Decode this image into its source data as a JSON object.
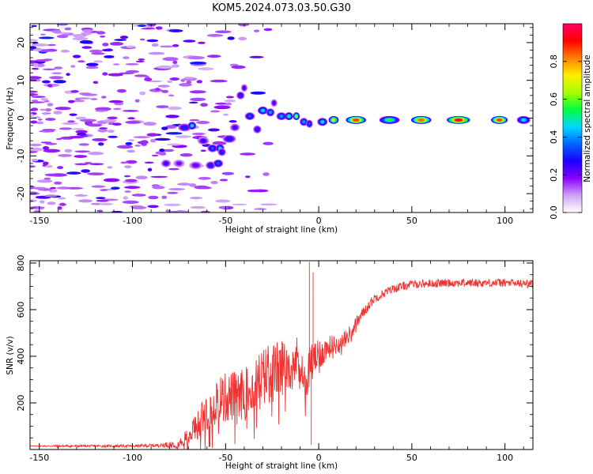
{
  "figure": {
    "title": "KOM5.2024.073.03.50.G30"
  },
  "chart_data": [
    {
      "type": "heatmap",
      "xlabel": "Height of straight line (km)",
      "ylabel": "Frequency (Hz)",
      "xlim": [
        -155,
        115
      ],
      "ylim": [
        -25,
        25
      ],
      "x_ticks": [
        -150,
        -100,
        -50,
        0,
        50,
        100
      ],
      "y_ticks": [
        -20,
        -10,
        0,
        10,
        20
      ],
      "colorbar": {
        "label": "Normalized spectral amplitude",
        "range": [
          0,
          1
        ],
        "ticks": [
          "0.0",
          "0.2",
          "0.4",
          "0.6",
          "0.8"
        ],
        "tick_values": [
          0,
          0.2,
          0.4,
          0.6,
          0.8
        ],
        "colors": [
          "#ffffff",
          "#cfa3f5",
          "#8a00ff",
          "#1a00ff",
          "#0066ff",
          "#00d8ff",
          "#00ff3c",
          "#a8ff00",
          "#ffee00",
          "#ff8000",
          "#ff0000",
          "#ff0066"
        ]
      },
      "trace": [
        {
          "x": -82,
          "y": -12,
          "w": 6,
          "amp": 0.25
        },
        {
          "x": -75,
          "y": -12,
          "w": 7,
          "amp": 0.2
        },
        {
          "x": -66,
          "y": -12.5,
          "w": 8,
          "amp": 0.22
        },
        {
          "x": -58,
          "y": -12.5,
          "w": 6,
          "amp": 0.3
        },
        {
          "x": -54,
          "y": -12,
          "w": 6,
          "amp": 0.35
        },
        {
          "x": -72,
          "y": -2.5,
          "w": 8,
          "amp": 0.3
        },
        {
          "x": -68,
          "y": -2,
          "w": 5,
          "amp": 0.45
        },
        {
          "x": -62,
          "y": -6,
          "w": 7,
          "amp": 0.25
        },
        {
          "x": -57,
          "y": -8,
          "w": 6,
          "amp": 0.35
        },
        {
          "x": -53,
          "y": -8,
          "w": 5,
          "amp": 0.45
        },
        {
          "x": -48,
          "y": -5.5,
          "w": 8,
          "amp": 0.3
        },
        {
          "x": -52,
          "y": -9,
          "w": 5,
          "amp": 0.3
        },
        {
          "x": -45,
          "y": -2.5,
          "w": 6,
          "amp": 0.25
        },
        {
          "x": -42,
          "y": 6,
          "w": 5,
          "amp": 0.3
        },
        {
          "x": -40,
          "y": 8,
          "w": 4,
          "amp": 0.25
        },
        {
          "x": -37,
          "y": 0.5,
          "w": 6,
          "amp": 0.35
        },
        {
          "x": -33,
          "y": -3,
          "w": 5,
          "amp": 0.3
        },
        {
          "x": -30,
          "y": 2,
          "w": 6,
          "amp": 0.45
        },
        {
          "x": -26,
          "y": 1.5,
          "w": 5,
          "amp": 0.4
        },
        {
          "x": -24,
          "y": 4,
          "w": 4,
          "amp": 0.25
        },
        {
          "x": -20,
          "y": 0.5,
          "w": 6,
          "amp": 0.4
        },
        {
          "x": -16,
          "y": 0.5,
          "w": 5,
          "amp": 0.5
        },
        {
          "x": -12,
          "y": 0.5,
          "w": 4,
          "amp": 0.6
        },
        {
          "x": -8,
          "y": -1,
          "w": 5,
          "amp": 0.4
        },
        {
          "x": -5,
          "y": -1.5,
          "w": 4,
          "amp": 0.35
        },
        {
          "x": 2,
          "y": -1,
          "w": 6,
          "amp": 0.45
        },
        {
          "x": 8,
          "y": -0.5,
          "w": 6,
          "amp": 0.7
        },
        {
          "x": 20,
          "y": -0.5,
          "w": 12,
          "amp": 0.85
        },
        {
          "x": 38,
          "y": -0.5,
          "w": 12,
          "amp": 0.55
        },
        {
          "x": 55,
          "y": -0.5,
          "w": 12,
          "amp": 0.82
        },
        {
          "x": 75,
          "y": -0.5,
          "w": 14,
          "amp": 0.95
        },
        {
          "x": 97,
          "y": -0.5,
          "w": 10,
          "amp": 0.85
        },
        {
          "x": 110,
          "y": -0.5,
          "w": 8,
          "amp": 0.45
        }
      ]
    },
    {
      "type": "line",
      "xlabel": "Height of straight line (km)",
      "ylabel": "SNR (v/v)",
      "xlim": [
        -155,
        115
      ],
      "ylim": [
        0,
        810
      ],
      "x_ticks": [
        -150,
        -100,
        -50,
        0,
        50,
        100
      ],
      "y_ticks": [
        200,
        400,
        600,
        800
      ],
      "line_color": "#ee3333",
      "series": [
        {
          "x": [
            -155,
            -140,
            -120,
            -100,
            -85,
            -75,
            -70,
            -65,
            -60,
            -55,
            -50,
            -45,
            -40,
            -35,
            -30,
            -25,
            -20,
            -15,
            -10,
            -7,
            -5,
            -3,
            0,
            5,
            10,
            15,
            20,
            25,
            30,
            40,
            50,
            60,
            70,
            80,
            90,
            100,
            110,
            115
          ],
          "y": [
            15,
            15,
            15,
            15,
            18,
            25,
            60,
            110,
            170,
            210,
            220,
            230,
            240,
            270,
            310,
            330,
            350,
            380,
            390,
            260,
            370,
            390,
            400,
            440,
            450,
            480,
            540,
            600,
            650,
            690,
            710,
            712,
            715,
            715,
            715,
            715,
            712,
            710
          ],
          "noise": [
            0,
            5,
            5,
            6,
            8,
            20,
            40,
            60,
            90,
            110,
            110,
            110,
            110,
            120,
            130,
            130,
            120,
            110,
            100,
            80,
            80,
            70,
            70,
            50,
            40,
            35,
            30,
            25,
            20,
            18,
            18,
            18,
            18,
            18,
            18,
            18,
            18,
            18
          ],
          "spikes": [
            {
              "x": -5,
              "y": 805
            },
            {
              "x": -4,
              "y": 20
            },
            {
              "x": -3,
              "y": 760
            }
          ]
        }
      ]
    }
  ]
}
